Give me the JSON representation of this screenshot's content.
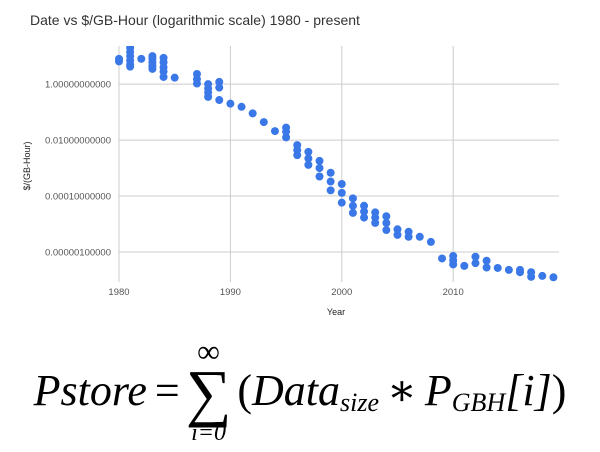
{
  "chart_data": {
    "type": "scatter",
    "title": "Date vs $/GB-Hour (logarithmic scale) 1980 - present",
    "xlabel": "Year",
    "ylabel": "$/(GB-Hour)",
    "x_ticks": [
      "1980",
      "1990",
      "2000",
      "2010"
    ],
    "y_ticks": [
      "1.00000000000",
      "0.01000000000",
      "0.00010000000",
      "0.00000100000"
    ],
    "y_tick_values": [
      1,
      0.01,
      0.0001,
      1e-06
    ],
    "x_tick_values": [
      1980,
      1990,
      2000,
      2010
    ],
    "y_scale": "log",
    "xlim": [
      1980,
      2019.5
    ],
    "ylim": [
      8.5e-08,
      23
    ],
    "grid": true,
    "legend": "none",
    "color": "#3b78e7",
    "points": [
      [
        1980,
        8
      ],
      [
        1980,
        6.5
      ],
      [
        1981,
        20
      ],
      [
        1981,
        14
      ],
      [
        1981,
        10
      ],
      [
        1981,
        7
      ],
      [
        1981,
        5
      ],
      [
        1981,
        4.2
      ],
      [
        1982,
        8
      ],
      [
        1983,
        10
      ],
      [
        1983,
        8
      ],
      [
        1983,
        6
      ],
      [
        1983,
        4.5
      ],
      [
        1983,
        3.5
      ],
      [
        1984,
        8.7
      ],
      [
        1984,
        6
      ],
      [
        1984,
        4
      ],
      [
        1984,
        2.8
      ],
      [
        1984,
        1.8
      ],
      [
        1985,
        1.7
      ],
      [
        1987,
        2.3
      ],
      [
        1987,
        1.5
      ],
      [
        1987,
        1.05
      ],
      [
        1988,
        1.0
      ],
      [
        1988,
        0.7
      ],
      [
        1988,
        0.5
      ],
      [
        1988,
        0.35
      ],
      [
        1989,
        1.2
      ],
      [
        1989,
        0.75
      ],
      [
        1989,
        0.27
      ],
      [
        1990,
        0.2
      ],
      [
        1991,
        0.155
      ],
      [
        1992,
        0.09
      ],
      [
        1993,
        0.044
      ],
      [
        1994,
        0.021
      ],
      [
        1995,
        0.028
      ],
      [
        1995,
        0.02
      ],
      [
        1995,
        0.0125
      ],
      [
        1996,
        0.0066
      ],
      [
        1996,
        0.0044
      ],
      [
        1996,
        0.0029
      ],
      [
        1997,
        0.0038
      ],
      [
        1997,
        0.0022
      ],
      [
        1997,
        0.0013
      ],
      [
        1998,
        0.0018
      ],
      [
        1998,
        0.001
      ],
      [
        1998,
        0.0005
      ],
      [
        1999,
        0.00068
      ],
      [
        1999,
        0.00033
      ],
      [
        1999,
        0.00016
      ],
      [
        2000,
        0.00027
      ],
      [
        2000,
        0.00013
      ],
      [
        2000,
        5.8e-05
      ],
      [
        2001,
        8.3e-05
      ],
      [
        2001,
        4.5e-05
      ],
      [
        2001,
        2.5e-05
      ],
      [
        2002,
        4.5e-05
      ],
      [
        2002,
        2.8e-05
      ],
      [
        2002,
        1.7e-05
      ],
      [
        2003,
        2.6e-05
      ],
      [
        2003,
        1.7e-05
      ],
      [
        2003,
        1.1e-05
      ],
      [
        2004,
        1.9e-05
      ],
      [
        2004,
        1.1e-05
      ],
      [
        2004,
        6.1e-06
      ],
      [
        2005,
        6.5e-06
      ],
      [
        2005,
        4.1e-06
      ],
      [
        2006,
        5.3e-06
      ],
      [
        2006,
        3.5e-06
      ],
      [
        2007,
        3.5e-06
      ],
      [
        2008,
        2.3e-06
      ],
      [
        2009,
        5.9e-07
      ],
      [
        2010,
        7.2e-07
      ],
      [
        2010,
        5e-07
      ],
      [
        2010,
        3.6e-07
      ],
      [
        2011,
        3.2e-07
      ],
      [
        2012,
        6.8e-07
      ],
      [
        2012,
        4e-07
      ],
      [
        2013,
        4.9e-07
      ],
      [
        2013,
        2.8e-07
      ],
      [
        2014,
        2.7e-07
      ],
      [
        2015,
        2.3e-07
      ],
      [
        2016,
        2.3e-07
      ],
      [
        2016,
        1.9e-07
      ],
      [
        2017,
        1.9e-07
      ],
      [
        2017,
        1.3e-07
      ],
      [
        2018,
        1.4e-07
      ],
      [
        2019,
        1.25e-07
      ]
    ]
  },
  "formula": {
    "lhs": "Pstore",
    "equals": "=",
    "sum_symbol": "∑",
    "upper_limit": "∞",
    "lower_limit": "i=0",
    "open_paren": "(",
    "data": "Data",
    "data_sub": "size",
    "times": "∗",
    "p": "P",
    "p_sub": "GBH",
    "index": "[i]",
    "close_paren": ")"
  }
}
